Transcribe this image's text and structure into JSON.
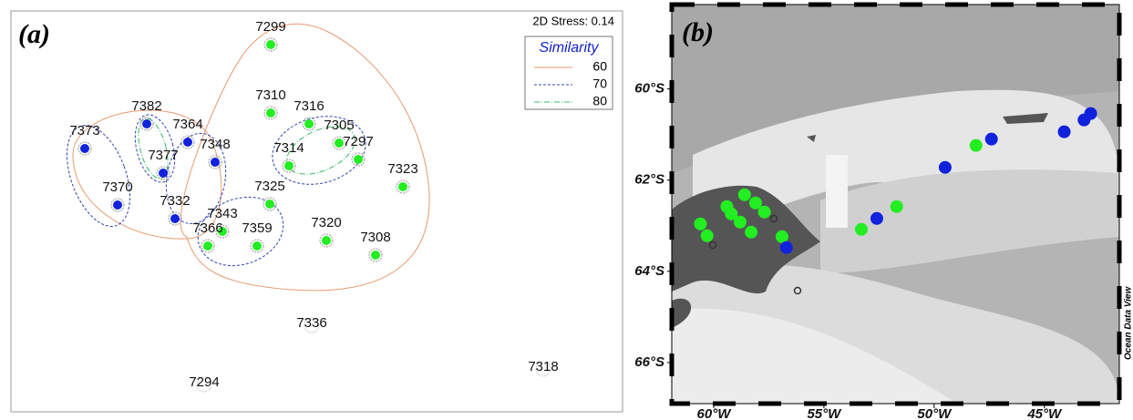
{
  "chart_data": [
    {
      "type": "nmds",
      "panel_label": "(a)",
      "stress": "2D Stress: 0.14",
      "legend": {
        "title": "Similarity",
        "entries": [
          {
            "value": 60,
            "color": "#e89a70",
            "dash": "none"
          },
          {
            "value": 70,
            "color": "#3344aa",
            "dash": "3,2"
          },
          {
            "value": 80,
            "color": "#33bb66",
            "dash": "6,2,1,2"
          }
        ]
      },
      "stations": [
        {
          "label": "7299",
          "color": "#22ee22"
        },
        {
          "label": "7310",
          "color": "#22ee22"
        },
        {
          "label": "7316",
          "color": "#22ee22"
        },
        {
          "label": "7305",
          "color": "#22ee22"
        },
        {
          "label": "7297",
          "color": "#22ee22"
        },
        {
          "label": "7314",
          "color": "#22ee22"
        },
        {
          "label": "7323",
          "color": "#22ee22"
        },
        {
          "label": "7325",
          "color": "#22ee22"
        },
        {
          "label": "7320",
          "color": "#22ee22"
        },
        {
          "label": "7308",
          "color": "#22ee22"
        },
        {
          "label": "7343",
          "color": "#22ee22"
        },
        {
          "label": "7366",
          "color": "#22ee22"
        },
        {
          "label": "7359",
          "color": "#22ee22"
        },
        {
          "label": "7382",
          "color": "#1122dd"
        },
        {
          "label": "7364",
          "color": "#1122dd"
        },
        {
          "label": "7348",
          "color": "#1122dd"
        },
        {
          "label": "7373",
          "color": "#1122dd"
        },
        {
          "label": "7377",
          "color": "#1122dd"
        },
        {
          "label": "7370",
          "color": "#1122dd"
        },
        {
          "label": "7332",
          "color": "#1122dd"
        },
        {
          "label": "7336",
          "color": null
        },
        {
          "label": "7294",
          "color": null
        },
        {
          "label": "7318",
          "color": null
        }
      ]
    },
    {
      "type": "map",
      "panel_label": "(b)",
      "credit": "Ocean Data View",
      "xlim": [
        -61.9,
        -41.6
      ],
      "ylim": [
        -66.9,
        -58.15
      ],
      "xticks": [
        {
          "value": -60,
          "label": "60°W"
        },
        {
          "value": -55,
          "label": "55°W"
        },
        {
          "value": -50,
          "label": "50°W"
        },
        {
          "value": -45,
          "label": "45°W"
        }
      ],
      "yticks": [
        {
          "value": -60,
          "label": "60°S"
        },
        {
          "value": -62,
          "label": "62°S"
        },
        {
          "value": -64,
          "label": "64°S"
        },
        {
          "value": -66,
          "label": "66°S"
        }
      ],
      "points": [
        {
          "lon": -60.6,
          "lat": -62.96,
          "color": "#22ee22"
        },
        {
          "lon": -60.3,
          "lat": -63.22,
          "color": "#22ee22"
        },
        {
          "lon": -59.4,
          "lat": -62.58,
          "color": "#22ee22"
        },
        {
          "lon": -59.2,
          "lat": -62.74,
          "color": "#22ee22"
        },
        {
          "lon": -58.8,
          "lat": -62.92,
          "color": "#22ee22"
        },
        {
          "lon": -58.6,
          "lat": -62.32,
          "color": "#22ee22"
        },
        {
          "lon": -58.1,
          "lat": -62.5,
          "color": "#22ee22"
        },
        {
          "lon": -57.7,
          "lat": -62.7,
          "color": "#22ee22"
        },
        {
          "lon": -58.3,
          "lat": -63.14,
          "color": "#22ee22"
        },
        {
          "lon": -56.9,
          "lat": -63.24,
          "color": "#22ee22"
        },
        {
          "lon": -53.3,
          "lat": -63.08,
          "color": "#22ee22"
        },
        {
          "lon": -51.7,
          "lat": -62.58,
          "color": "#22ee22"
        },
        {
          "lon": -48.1,
          "lat": -61.24,
          "color": "#22ee22"
        },
        {
          "lon": -56.7,
          "lat": -63.48,
          "color": "#1122dd"
        },
        {
          "lon": -52.6,
          "lat": -62.84,
          "color": "#1122dd"
        },
        {
          "lon": -49.5,
          "lat": -61.72,
          "color": "#1122dd"
        },
        {
          "lon": -47.4,
          "lat": -61.1,
          "color": "#1122dd"
        },
        {
          "lon": -44.1,
          "lat": -60.94,
          "color": "#1122dd"
        },
        {
          "lon": -43.2,
          "lat": -60.68,
          "color": "#1122dd"
        },
        {
          "lon": -42.9,
          "lat": -60.54,
          "color": "#1122dd"
        }
      ]
    }
  ]
}
